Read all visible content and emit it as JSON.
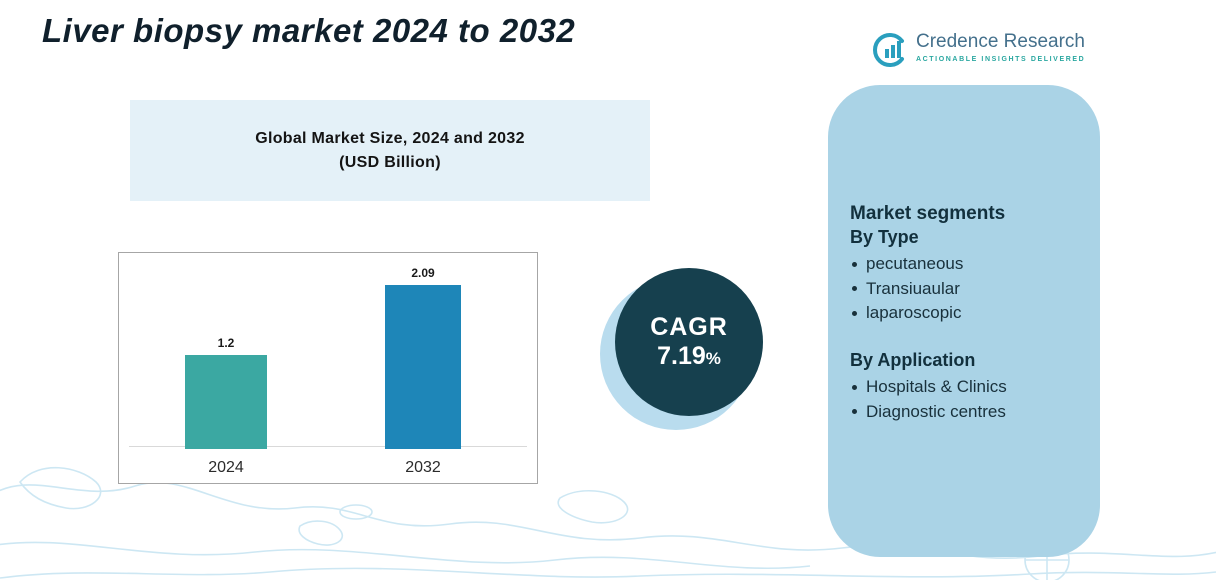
{
  "page": {
    "title": "Liver biopsy market 2024 to 2032"
  },
  "logo": {
    "name": "Credence Research",
    "tagline": "Actionable Insights Delivered"
  },
  "header_box": {
    "line1": "Global Market Size, 2024 and 2032",
    "line2": "(USD Billion)"
  },
  "chart_data": {
    "type": "bar",
    "title": "Global Market Size, 2024 and 2032 (USD Billion)",
    "categories": [
      "2024",
      "2032"
    ],
    "values": [
      1.2,
      2.09
    ],
    "value_labels": [
      "1.2",
      "2.09"
    ],
    "xlabel": "",
    "ylabel": "",
    "ylim": [
      0,
      2.5
    ],
    "grid": false,
    "legend": "none",
    "bar_colors": [
      "#3ba8a2",
      "#1e86b8"
    ]
  },
  "cagr": {
    "label": "CAGR",
    "value": "7.19",
    "percent": "%"
  },
  "segments": {
    "heading": "Market segments",
    "groups": [
      {
        "title": "By Type",
        "items": [
          "pecutaneous",
          "Transiuaular",
          "laparoscopic"
        ]
      },
      {
        "title": "By Application",
        "items": [
          "Hospitals & Clinics",
          "Diagnostic centres"
        ]
      }
    ]
  },
  "colors": {
    "bar_2024": "#3ba8a2",
    "bar_2032": "#1e86b8",
    "cagr_circle": "#16404e",
    "cagr_crescent": "#b9dcee",
    "panel_background": "#aad3e6",
    "header_box_background": "#e4f1f8",
    "map_stroke": "#cde7f3"
  }
}
